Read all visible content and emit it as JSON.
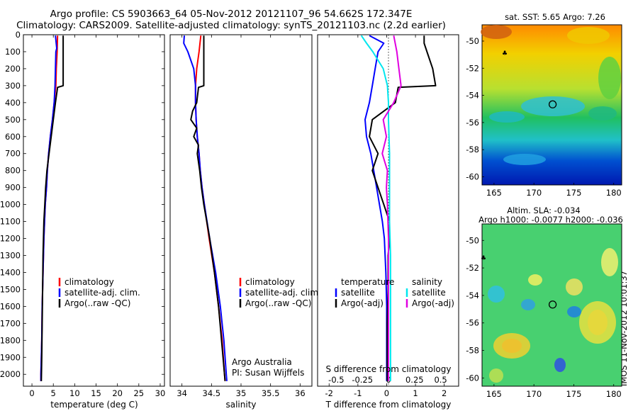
{
  "title": {
    "line1": "Argo profile: CS 5903663_64 05-Nov-2012 20121107_96 54.662S 172.347E",
    "line2": "Climatology: CARS2009. Satellite-adjusted climatology: synTS_20121103.nc (2.2d earlier)"
  },
  "depth_ticks": [
    "0",
    "100",
    "200",
    "300",
    "400",
    "500",
    "600",
    "700",
    "800",
    "900",
    "1000",
    "1100",
    "1200",
    "1300",
    "1400",
    "1500",
    "1600",
    "1700",
    "1800",
    "1900",
    "2000"
  ],
  "colors": {
    "clim": "#ff0000",
    "sat": "#0000ff",
    "argo": "#000000",
    "tsat": "#0000ff",
    "targo": "#000000",
    "ssat": "#00e6ee",
    "sargo": "#e000e0"
  },
  "chart_data": [
    {
      "type": "line",
      "name": "temperature",
      "xlabel": "temperature (deg C)",
      "xlim": [
        -2,
        31
      ],
      "ylim": [
        2070,
        0
      ],
      "xticks": [
        0,
        5,
        10,
        15,
        20,
        25,
        30
      ],
      "xtick_labels": [
        "0",
        "5",
        "10",
        "15",
        "20",
        "25",
        "30"
      ],
      "legend": [
        "climatology",
        "satellite-adj. clim.",
        "Argo(..raw -QC)"
      ],
      "series": [
        {
          "name": "climatology",
          "color": "#ff0000",
          "depth": [
            5,
            100,
            200,
            300,
            400,
            500,
            600,
            700,
            800,
            900,
            1000,
            1200,
            1400,
            1600,
            1800,
            2000,
            2040
          ],
          "values": [
            6.0,
            5.9,
            5.7,
            5.6,
            5.2,
            4.8,
            4.3,
            3.9,
            3.6,
            3.4,
            3.1,
            2.8,
            2.6,
            2.4,
            2.3,
            2.1,
            2.1
          ]
        },
        {
          "name": "satellite-adj. clim.",
          "color": "#0000ff",
          "depth": [
            5,
            80,
            100,
            200,
            300,
            400,
            500,
            600,
            700,
            800,
            900,
            1000,
            1200,
            1400,
            1600,
            1800,
            2000,
            2040
          ],
          "values": [
            5.5,
            5.8,
            5.6,
            5.5,
            5.4,
            5.2,
            4.8,
            4.3,
            3.9,
            3.6,
            3.4,
            3.1,
            2.8,
            2.6,
            2.4,
            2.3,
            2.1,
            2.1
          ]
        },
        {
          "name": "Argo(..raw -QC)",
          "color": "#000000",
          "depth": [
            5,
            100,
            200,
            300,
            310,
            400,
            500,
            600,
            700,
            800,
            900,
            1000,
            1100,
            1300,
            1500,
            1700,
            1900,
            2040
          ],
          "values": [
            7.3,
            7.3,
            7.3,
            7.3,
            6.0,
            5.5,
            5.0,
            4.5,
            4.0,
            3.5,
            3.2,
            3.0,
            2.8,
            2.6,
            2.5,
            2.4,
            2.3,
            2.2
          ]
        }
      ]
    },
    {
      "type": "line",
      "name": "salinity",
      "xlabel": "salinity",
      "xlim": [
        33.8,
        36.2
      ],
      "ylim": [
        2070,
        0
      ],
      "xticks": [
        34,
        34.5,
        35,
        35.5,
        36
      ],
      "xtick_labels": [
        "34",
        "34.5",
        "35",
        "35.5",
        "36"
      ],
      "legend": [
        "climatology",
        "satellite-adj. clim.",
        "Argo(..raw -QC)"
      ],
      "note": [
        "Argo Australia",
        "PI: Susan Wijffels"
      ],
      "series": [
        {
          "name": "climatology",
          "color": "#ff0000",
          "depth": [
            5,
            100,
            200,
            300,
            400,
            500,
            600,
            700,
            800,
            900,
            1000,
            1200,
            1400,
            1600,
            1800,
            2000,
            2040
          ],
          "values": [
            34.32,
            34.29,
            34.25,
            34.23,
            34.23,
            34.24,
            34.26,
            34.29,
            34.31,
            34.34,
            34.38,
            34.46,
            34.55,
            34.62,
            34.68,
            34.72,
            34.73
          ]
        },
        {
          "name": "satellite-adj. clim.",
          "color": "#0000ff",
          "depth": [
            5,
            50,
            100,
            200,
            300,
            400,
            500,
            600,
            700,
            800,
            900,
            1000,
            1200,
            1400,
            1600,
            1800,
            2000,
            2040
          ],
          "values": [
            34.04,
            34.03,
            34.1,
            34.2,
            34.23,
            34.23,
            34.24,
            34.26,
            34.29,
            34.31,
            34.34,
            34.38,
            34.47,
            34.57,
            34.65,
            34.71,
            34.75,
            34.76
          ]
        },
        {
          "name": "Argo(..raw -QC)",
          "color": "#000000",
          "depth": [
            5,
            300,
            310,
            400,
            450,
            500,
            550,
            600,
            650,
            700,
            800,
            900,
            1000,
            1100,
            1200,
            1400,
            1600,
            1800,
            2000,
            2040
          ],
          "values": [
            34.37,
            34.37,
            34.28,
            34.25,
            34.18,
            34.15,
            34.25,
            34.2,
            34.28,
            34.26,
            34.3,
            34.33,
            34.37,
            34.42,
            34.47,
            34.55,
            34.62,
            34.67,
            34.72,
            34.73
          ]
        }
      ]
    },
    {
      "type": "line",
      "name": "difference",
      "xlabel": "T difference from climatology",
      "xlabel_top": "S difference from climatology",
      "xlim": [
        -2.4,
        2.5
      ],
      "ylim": [
        2070,
        0
      ],
      "xticks": [
        -2,
        -1,
        0,
        1,
        2
      ],
      "xtick_labels": [
        "-2",
        "-1",
        "0",
        "1",
        "2"
      ],
      "sticks": [
        -0.5,
        -0.25,
        0,
        0.25,
        0.5
      ],
      "stick_labels": [
        "-0.5",
        "-0.25",
        "0",
        "0.25",
        "0.5"
      ],
      "legend_temperature": {
        "title": "temperature",
        "satellite": "satellite",
        "argo": "Argo(-adj)"
      },
      "legend_salinity": {
        "title": "salinity",
        "satellite": "satellite",
        "argo": "Argo(-adj)"
      },
      "series": [
        {
          "name": "temperature satellite",
          "color": "#0000ff",
          "depth": [
            5,
            50,
            100,
            200,
            300,
            400,
            500,
            600,
            700,
            800,
            900,
            1000,
            1100,
            1200,
            1400,
            1600,
            1800,
            2000,
            2040
          ],
          "values": [
            -0.6,
            -0.1,
            -0.3,
            -0.4,
            -0.5,
            -0.6,
            -0.75,
            -0.7,
            -0.55,
            -0.45,
            -0.35,
            -0.25,
            -0.15,
            -0.08,
            -0.03,
            0,
            0,
            0,
            0
          ]
        },
        {
          "name": "temperature Argo(-adj)",
          "color": "#000000",
          "depth": [
            5,
            50,
            100,
            200,
            300,
            310,
            400,
            500,
            600,
            700,
            800,
            900,
            1000,
            1100,
            1200,
            1300,
            1500,
            1700,
            1900,
            2040
          ],
          "values": [
            1.3,
            1.3,
            1.4,
            1.6,
            1.7,
            0.4,
            0.3,
            -0.5,
            -0.6,
            -0.3,
            -0.5,
            -0.3,
            -0.1,
            0.1,
            0.1,
            0.05,
            0.05,
            0.02,
            0.02,
            0.02
          ]
        },
        {
          "name": "salinity satellite",
          "color": "#00e6ee",
          "depth": [
            5,
            50,
            100,
            200,
            300,
            400,
            500,
            700,
            900,
            1100,
            1300,
            1500,
            1700,
            1900,
            2040
          ],
          "values": [
            -0.26,
            -0.21,
            -0.15,
            -0.05,
            -0.01,
            0,
            0,
            0.01,
            0.01,
            0.01,
            0.02,
            0.02,
            0.02,
            0.02,
            0.02
          ]
        },
        {
          "name": "salinity Argo(-adj)",
          "color": "#e000e0",
          "depth": [
            5,
            100,
            200,
            300,
            400,
            500,
            600,
            700,
            800,
            900,
            1000,
            1200,
            1400,
            1600,
            1800,
            2040
          ],
          "values": [
            0.05,
            0.08,
            0.1,
            0.12,
            0.05,
            -0.05,
            -0.02,
            -0.06,
            -0.01,
            -0.02,
            -0.01,
            0.0,
            0.0,
            0.0,
            0.0,
            0.0
          ]
        }
      ]
    },
    {
      "type": "heatmap",
      "name": "SST map",
      "title": "sat. SST: 5.65 Argo: 7.26",
      "xlim": [
        163.5,
        181
      ],
      "ylim": [
        -60.6,
        -48.8
      ],
      "xticks": [
        165,
        170,
        175,
        180
      ],
      "xtick_labels": [
        "165",
        "170",
        "175",
        "180"
      ],
      "yticks": [
        -50,
        -52,
        -54,
        -56,
        -58,
        -60
      ],
      "ytick_labels": [
        "-50",
        "-52",
        "-54",
        "-56",
        "-58",
        "-60"
      ],
      "float_position": [
        172.347,
        -54.662
      ]
    },
    {
      "type": "heatmap",
      "name": "SLA map",
      "title": "Altim. SLA: -0.034",
      "title2": "Argo h1000: -0.0077 h2000: -0.036",
      "xlim": [
        163.5,
        181
      ],
      "ylim": [
        -60.6,
        -48.8
      ],
      "xticks": [
        165,
        170,
        175,
        180
      ],
      "xtick_labels": [
        "165",
        "170",
        "175",
        "180"
      ],
      "yticks": [
        -50,
        -52,
        -54,
        -56,
        -58,
        -60
      ],
      "ytick_labels": [
        "-50",
        "-52",
        "-54",
        "-56",
        "-58",
        "-60"
      ],
      "float_position": [
        172.347,
        -54.662
      ]
    }
  ],
  "stamp": "IMOS 11-Nov-2012 10:01:37"
}
